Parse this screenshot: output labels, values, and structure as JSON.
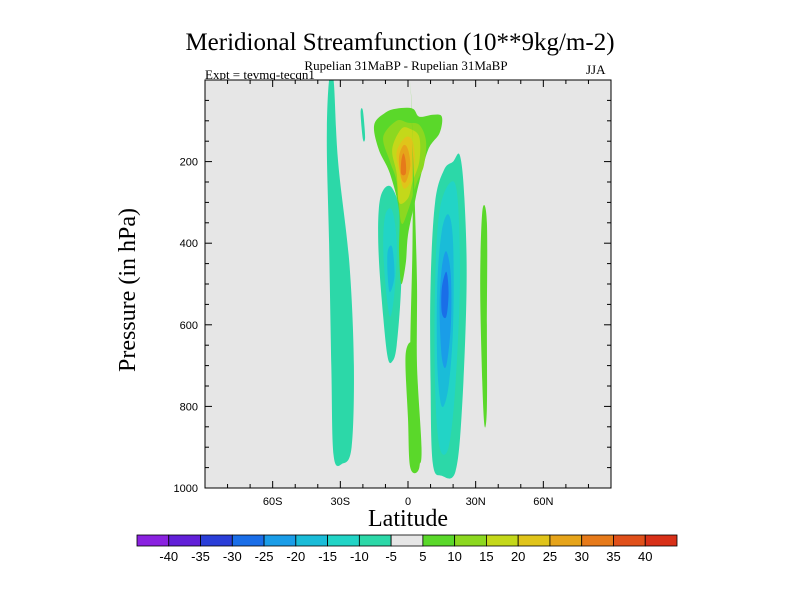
{
  "chart_data": {
    "type": "filled-contour",
    "title": "Meridional Streamfunction (10**9kg/m-2)",
    "subtitle": "Rupelian  31MaBP - Rupelian  31MaBP",
    "left_label": "Expt = tevmq-tecqn1",
    "right_label": "JJA",
    "xlabel": "Latitude",
    "ylabel": "Pressure (in hPa)",
    "xlim": [
      -90,
      90
    ],
    "ylim": [
      1000,
      0
    ],
    "x_ticks": [
      {
        "value": -60,
        "label": "60S"
      },
      {
        "value": -30,
        "label": "30S"
      },
      {
        "value": 0,
        "label": "0"
      },
      {
        "value": 30,
        "label": "30N"
      },
      {
        "value": 60,
        "label": "60N"
      }
    ],
    "y_ticks": [
      {
        "value": 200,
        "label": "200"
      },
      {
        "value": 400,
        "label": "400"
      },
      {
        "value": 600,
        "label": "600"
      },
      {
        "value": 800,
        "label": "800"
      },
      {
        "value": 1000,
        "label": "1000"
      }
    ],
    "background_color": "#e6e6e6",
    "colorbar": {
      "levels": [
        -40,
        -35,
        -30,
        -25,
        -20,
        -15,
        -10,
        -5,
        5,
        10,
        15,
        20,
        25,
        30,
        35,
        40
      ],
      "labels": [
        "-40",
        "-35",
        "-30",
        "-25",
        "-20",
        "-15",
        "-10",
        "-5",
        "5",
        "10",
        "15",
        "20",
        "25",
        "30",
        "35",
        "40"
      ],
      "colors": [
        "#8a22e0",
        "#6220d8",
        "#2a3ed8",
        "#1a6ee8",
        "#1a9de8",
        "#1abcd8",
        "#22d4c6",
        "#2cd8a8",
        "#e6e6e6",
        "#5ad82a",
        "#8cd820",
        "#c4d81a",
        "#e0c41a",
        "#e6a41a",
        "#e67a1a",
        "#e0501a",
        "#d83018"
      ]
    },
    "regions": [
      {
        "name": "southern-cell-band",
        "sign": "negative",
        "level": -5,
        "color": "#2cd8a8",
        "outline": [
          [
            -35,
            0
          ],
          [
            -33,
            0
          ],
          [
            -31,
            200
          ],
          [
            -26,
            450
          ],
          [
            -24,
            700
          ],
          [
            -25,
            900
          ],
          [
            -29,
            940
          ],
          [
            -33,
            920
          ],
          [
            -34,
            700
          ],
          [
            -35,
            400
          ],
          [
            -36,
            150
          ]
        ]
      },
      {
        "name": "small-patch-upper",
        "sign": "negative",
        "level": -5,
        "color": "#2cd8a8",
        "outline": [
          [
            -21,
            80
          ],
          [
            -20,
            75
          ],
          [
            -19,
            140
          ],
          [
            -20,
            145
          ]
        ]
      },
      {
        "name": "southern-subtropical-band",
        "sign": "negative",
        "level": -5,
        "color": "#2cd8a8",
        "outline": [
          [
            -11,
            270
          ],
          [
            -7,
            265
          ],
          [
            -3,
            340
          ],
          [
            -3,
            500
          ],
          [
            -5,
            650
          ],
          [
            -7,
            690
          ],
          [
            -9,
            680
          ],
          [
            -11,
            580
          ],
          [
            -13,
            430
          ],
          [
            -13,
            320
          ]
        ]
      },
      {
        "name": "southern-subtropical-core",
        "sign": "negative",
        "level": -10,
        "color": "#22d4c6",
        "outline": [
          [
            -10,
            330
          ],
          [
            -7,
            320
          ],
          [
            -5,
            400
          ],
          [
            -6,
            520
          ],
          [
            -8,
            580
          ],
          [
            -10,
            500
          ],
          [
            -11,
            400
          ]
        ]
      },
      {
        "name": "southern-subtropical-inner",
        "sign": "negative",
        "level": -15,
        "color": "#1abcd8",
        "outline": [
          [
            -9,
            420
          ],
          [
            -7,
            410
          ],
          [
            -6,
            480
          ],
          [
            -8,
            520
          ],
          [
            -9,
            480
          ]
        ]
      },
      {
        "name": "northern-cell-outer",
        "sign": "negative",
        "level": -5,
        "color": "#2cd8a8",
        "outline": [
          [
            20,
            200
          ],
          [
            23,
            185
          ],
          [
            25,
            290
          ],
          [
            26,
            500
          ],
          [
            24,
            800
          ],
          [
            21,
            960
          ],
          [
            15,
            970
          ],
          [
            11,
            940
          ],
          [
            10,
            750
          ],
          [
            10,
            500
          ],
          [
            12,
            300
          ],
          [
            16,
            220
          ]
        ]
      },
      {
        "name": "northern-cell-mid",
        "sign": "negative",
        "level": -10,
        "color": "#22d4c6",
        "outline": [
          [
            19,
            250
          ],
          [
            22,
            290
          ],
          [
            23,
            500
          ],
          [
            21,
            750
          ],
          [
            18,
            900
          ],
          [
            14,
            900
          ],
          [
            12,
            750
          ],
          [
            12,
            500
          ],
          [
            14,
            320
          ]
        ]
      },
      {
        "name": "northern-cell-inner",
        "sign": "negative",
        "level": -15,
        "color": "#1abcd8",
        "outline": [
          [
            18,
            330
          ],
          [
            20,
            400
          ],
          [
            20,
            600
          ],
          [
            18,
            750
          ],
          [
            15,
            800
          ],
          [
            13,
            700
          ],
          [
            13,
            500
          ],
          [
            15,
            370
          ]
        ]
      },
      {
        "name": "northern-cell-core",
        "sign": "negative",
        "level": -20,
        "color": "#1a9de8",
        "outline": [
          [
            17,
            420
          ],
          [
            19,
            480
          ],
          [
            19,
            600
          ],
          [
            17,
            700
          ],
          [
            15,
            680
          ],
          [
            14,
            560
          ],
          [
            15,
            460
          ]
        ]
      },
      {
        "name": "northern-cell-peak",
        "sign": "negative",
        "level": -25,
        "color": "#1a6ee8",
        "outline": [
          [
            17,
            470
          ],
          [
            18,
            520
          ],
          [
            17,
            580
          ],
          [
            15,
            570
          ],
          [
            15,
            510
          ]
        ]
      },
      {
        "name": "equatorial-positive-outer",
        "sign": "positive",
        "level": 5,
        "color": "#5ad82a",
        "outline": [
          [
            -15,
            110
          ],
          [
            -10,
            80
          ],
          [
            -5,
            70
          ],
          [
            2,
            70
          ],
          [
            5,
            90
          ],
          [
            11,
            85
          ],
          [
            15,
            90
          ],
          [
            14,
            130
          ],
          [
            9,
            170
          ],
          [
            5,
            250
          ],
          [
            3,
            300
          ],
          [
            0,
            380
          ],
          [
            -1,
            450
          ],
          [
            -3,
            500
          ],
          [
            -4,
            420
          ],
          [
            -4,
            320
          ],
          [
            -8,
            230
          ],
          [
            -13,
            170
          ]
        ]
      },
      {
        "name": "equatorial-positive-10",
        "sign": "positive",
        "level": 10,
        "color": "#8cd820",
        "outline": [
          [
            -11,
            140
          ],
          [
            -5,
            100
          ],
          [
            0,
            105
          ],
          [
            5,
            110
          ],
          [
            8,
            150
          ],
          [
            7,
            210
          ],
          [
            4,
            250
          ],
          [
            0,
            320
          ],
          [
            -3,
            350
          ],
          [
            -5,
            250
          ],
          [
            -8,
            200
          ]
        ]
      },
      {
        "name": "equatorial-positive-15",
        "sign": "positive",
        "level": 15,
        "color": "#c4d81a",
        "outline": [
          [
            -7,
            170
          ],
          [
            -3,
            120
          ],
          [
            1,
            120
          ],
          [
            5,
            140
          ],
          [
            5,
            200
          ],
          [
            2,
            250
          ],
          [
            0,
            290
          ],
          [
            -4,
            300
          ],
          [
            -5,
            230
          ]
        ]
      },
      {
        "name": "equatorial-positive-20",
        "sign": "positive",
        "level": 20,
        "color": "#e0c41a",
        "outline": [
          [
            -5,
            175
          ],
          [
            -1,
            140
          ],
          [
            2,
            150
          ],
          [
            3,
            200
          ],
          [
            1,
            250
          ],
          [
            -2,
            265
          ],
          [
            -4,
            220
          ]
        ]
      },
      {
        "name": "equatorial-positive-25",
        "sign": "positive",
        "level": 25,
        "color": "#e6a41a",
        "outline": [
          [
            -4,
            190
          ],
          [
            -2,
            160
          ],
          [
            0,
            170
          ],
          [
            1,
            210
          ],
          [
            -1,
            250
          ],
          [
            -3,
            240
          ]
        ]
      },
      {
        "name": "equatorial-positive-30",
        "sign": "positive",
        "level": 30,
        "color": "#e67a1a",
        "outline": [
          [
            -3,
            200
          ],
          [
            -2,
            180
          ],
          [
            -1,
            200
          ],
          [
            -1,
            230
          ],
          [
            -3,
            230
          ]
        ]
      },
      {
        "name": "equatorial-positive-stripe",
        "sign": "positive",
        "level": 5,
        "color": "#5ad82a",
        "outline": [
          [
            0,
            0
          ],
          [
            1,
            0
          ],
          [
            2,
            150
          ],
          [
            2,
            400
          ],
          [
            1,
            700
          ],
          [
            3,
            900
          ],
          [
            5,
            940
          ],
          [
            6,
            900
          ],
          [
            4,
            700
          ],
          [
            4,
            500
          ],
          [
            3,
            300
          ],
          [
            2,
            150
          ],
          [
            1,
            0
          ]
        ]
      },
      {
        "name": "equatorial-positive-base",
        "sign": "positive",
        "level": 5,
        "color": "#5ad82a",
        "outline": [
          [
            -1,
            670
          ],
          [
            3,
            660
          ],
          [
            5,
            850
          ],
          [
            5,
            950
          ],
          [
            1,
            950
          ],
          [
            0,
            830
          ]
        ]
      },
      {
        "name": "north-positive-band",
        "sign": "positive",
        "level": 5,
        "color": "#5ad82a",
        "outline": [
          [
            33,
            320
          ],
          [
            35,
            350
          ],
          [
            35,
            600
          ],
          [
            35,
            800
          ],
          [
            34,
            850
          ],
          [
            33,
            750
          ],
          [
            32,
            500
          ]
        ]
      }
    ]
  }
}
